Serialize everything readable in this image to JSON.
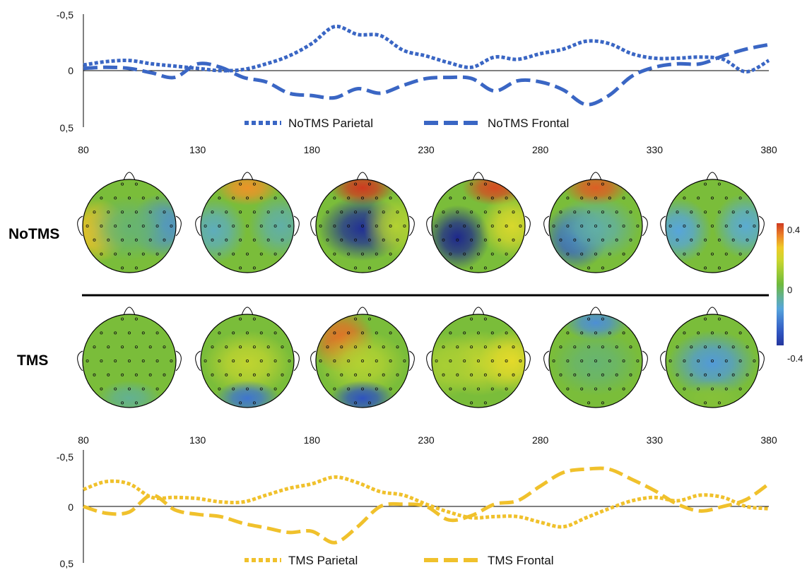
{
  "chart_data": [
    {
      "type": "line",
      "x_ticks": [
        "80",
        "130",
        "180",
        "230",
        "280",
        "330",
        "380"
      ],
      "y_ticks": [
        "-0,5",
        "0",
        "0,5"
      ],
      "ylim": [
        -0.5,
        0.5
      ],
      "xlim": [
        80,
        380
      ],
      "y_inverted": true,
      "series": [
        {
          "name": "NoTMS Parietal",
          "style": "dotted",
          "color": "#3a66c4",
          "x": [
            80,
            90,
            100,
            110,
            120,
            130,
            140,
            150,
            160,
            170,
            180,
            190,
            200,
            210,
            220,
            230,
            240,
            250,
            260,
            270,
            280,
            290,
            300,
            310,
            320,
            330,
            340,
            350,
            360,
            370,
            380
          ],
          "y": [
            -0.05,
            -0.08,
            -0.09,
            -0.06,
            -0.04,
            -0.02,
            0.0,
            -0.01,
            -0.06,
            -0.13,
            -0.24,
            -0.39,
            -0.32,
            -0.31,
            -0.18,
            -0.13,
            -0.07,
            -0.03,
            -0.12,
            -0.1,
            -0.15,
            -0.19,
            -0.26,
            -0.24,
            -0.15,
            -0.11,
            -0.11,
            -0.12,
            -0.1,
            0.01,
            -0.09
          ]
        },
        {
          "name": "NoTMS Frontal",
          "style": "dashed",
          "color": "#3a66c4",
          "x": [
            80,
            90,
            100,
            110,
            120,
            130,
            140,
            150,
            160,
            170,
            180,
            190,
            200,
            210,
            220,
            230,
            240,
            250,
            260,
            270,
            280,
            290,
            300,
            310,
            320,
            330,
            340,
            350,
            360,
            370,
            380
          ],
          "y": [
            -0.02,
            -0.03,
            -0.02,
            0.02,
            0.06,
            -0.06,
            -0.03,
            0.06,
            0.1,
            0.2,
            0.22,
            0.24,
            0.16,
            0.2,
            0.13,
            0.07,
            0.06,
            0.07,
            0.18,
            0.09,
            0.1,
            0.17,
            0.3,
            0.22,
            0.05,
            -0.03,
            -0.06,
            -0.06,
            -0.13,
            -0.19,
            -0.23
          ]
        }
      ]
    },
    {
      "type": "line",
      "x_ticks": [
        "80",
        "130",
        "180",
        "230",
        "280",
        "330",
        "380"
      ],
      "y_ticks": [
        "-0,5",
        "0",
        "0,5"
      ],
      "ylim": [
        -0.5,
        0.5
      ],
      "xlim": [
        80,
        380
      ],
      "y_inverted": true,
      "series": [
        {
          "name": "TMS Parietal",
          "style": "dotted",
          "color": "#f0c12c",
          "x": [
            80,
            90,
            100,
            110,
            120,
            130,
            140,
            150,
            160,
            170,
            180,
            190,
            200,
            210,
            220,
            230,
            240,
            250,
            260,
            270,
            280,
            290,
            300,
            310,
            320,
            330,
            340,
            350,
            360,
            370,
            380
          ],
          "y": [
            -0.15,
            -0.22,
            -0.2,
            -0.08,
            -0.08,
            -0.07,
            -0.04,
            -0.04,
            -0.1,
            -0.16,
            -0.2,
            -0.26,
            -0.21,
            -0.13,
            -0.1,
            -0.02,
            0.05,
            0.1,
            0.09,
            0.09,
            0.14,
            0.18,
            0.1,
            0.02,
            -0.05,
            -0.08,
            -0.05,
            -0.1,
            -0.08,
            0.0,
            0.02
          ]
        },
        {
          "name": "TMS Frontal",
          "style": "dashed",
          "color": "#f0c12c",
          "x": [
            80,
            90,
            100,
            110,
            120,
            130,
            140,
            150,
            160,
            170,
            180,
            190,
            200,
            210,
            220,
            230,
            240,
            250,
            260,
            270,
            280,
            290,
            300,
            310,
            320,
            330,
            340,
            350,
            360,
            370,
            380
          ],
          "y": [
            0.0,
            0.06,
            0.05,
            -0.1,
            0.03,
            0.07,
            0.09,
            0.15,
            0.19,
            0.23,
            0.22,
            0.32,
            0.18,
            0.0,
            -0.02,
            0.0,
            0.12,
            0.08,
            -0.02,
            -0.05,
            -0.18,
            -0.3,
            -0.33,
            -0.33,
            -0.24,
            -0.14,
            -0.02,
            0.04,
            0.0,
            -0.06,
            -0.2
          ]
        }
      ]
    },
    {
      "type": "heatmap",
      "rows": [
        "NoTMS",
        "TMS"
      ],
      "colorbar_ticks": [
        "0.4",
        "0",
        "-0.4"
      ],
      "colorbar_range": [
        -0.4,
        0.4
      ],
      "maps": [
        {
          "row": "NoTMS",
          "blobs": [
            {
              "c": "left",
              "v": 0.25
            },
            {
              "c": "right",
              "v": -0.2
            },
            {
              "c": "center",
              "v": -0.05
            }
          ]
        },
        {
          "row": "NoTMS",
          "blobs": [
            {
              "c": "top",
              "v": 0.3
            },
            {
              "c": "left",
              "v": -0.12
            },
            {
              "c": "right",
              "v": -0.1
            }
          ]
        },
        {
          "row": "NoTMS",
          "blobs": [
            {
              "c": "top",
              "v": 0.4
            },
            {
              "c": "center",
              "v": -0.42
            },
            {
              "c": "right",
              "v": 0.12
            }
          ]
        },
        {
          "row": "NoTMS",
          "blobs": [
            {
              "c": "top-right",
              "v": 0.38
            },
            {
              "c": "lower-left",
              "v": -0.44
            },
            {
              "c": "right",
              "v": 0.18
            }
          ]
        },
        {
          "row": "NoTMS",
          "blobs": [
            {
              "c": "top",
              "v": 0.36
            },
            {
              "c": "lower-left",
              "v": -0.3
            },
            {
              "c": "center",
              "v": -0.1
            }
          ]
        },
        {
          "row": "NoTMS",
          "blobs": [
            {
              "c": "left",
              "v": -0.16
            },
            {
              "c": "right",
              "v": -0.14
            }
          ]
        },
        {
          "row": "TMS",
          "blobs": [
            {
              "c": "center",
              "v": 0.02
            },
            {
              "c": "bottom",
              "v": -0.08
            }
          ]
        },
        {
          "row": "TMS",
          "blobs": [
            {
              "c": "center",
              "v": 0.14
            },
            {
              "c": "bottom",
              "v": -0.25
            }
          ]
        },
        {
          "row": "TMS",
          "blobs": [
            {
              "c": "top-left",
              "v": 0.34
            },
            {
              "c": "center",
              "v": 0.12
            },
            {
              "c": "bottom",
              "v": -0.32
            }
          ]
        },
        {
          "row": "TMS",
          "blobs": [
            {
              "c": "center",
              "v": 0.14
            },
            {
              "c": "right",
              "v": 0.2
            },
            {
              "c": "left",
              "v": 0.1
            }
          ]
        },
        {
          "row": "TMS",
          "blobs": [
            {
              "c": "top",
              "v": -0.2
            },
            {
              "c": "center",
              "v": -0.05
            }
          ]
        },
        {
          "row": "TMS",
          "blobs": [
            {
              "c": "center",
              "v": -0.18
            },
            {
              "c": "bottom",
              "v": 0.04
            }
          ]
        }
      ]
    }
  ]
}
